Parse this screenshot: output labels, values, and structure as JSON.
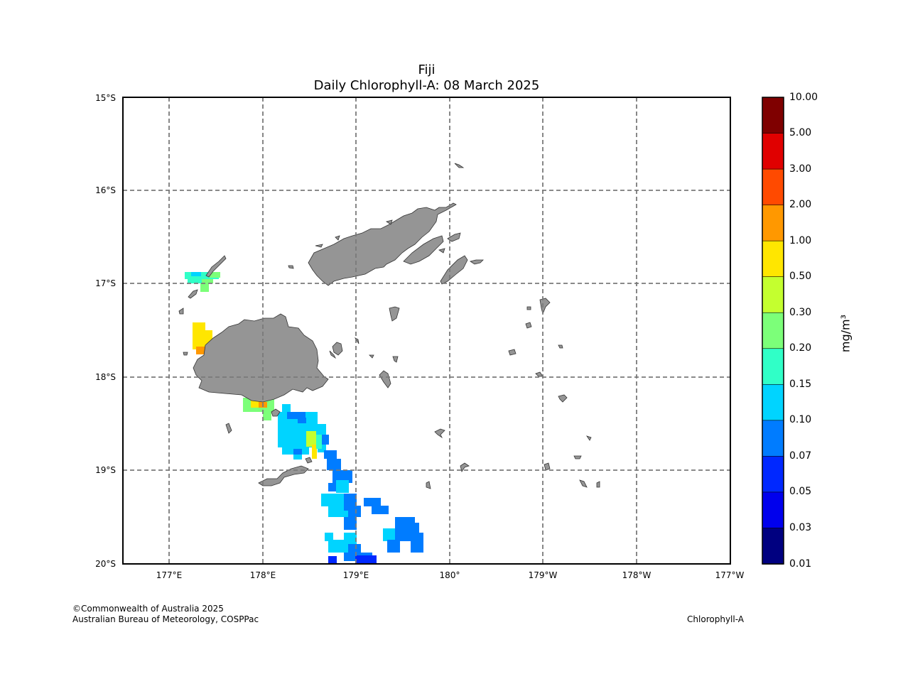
{
  "title": {
    "region": "Fiji",
    "subtitle": "Daily Chlorophyll-A: 08 March 2025"
  },
  "map": {
    "lat_labels": [
      "15°S",
      "16°S",
      "17°S",
      "18°S",
      "19°S",
      "20°S"
    ],
    "lon_labels": [
      "177°E",
      "178°E",
      "179°E",
      "180°",
      "179°W",
      "178°W",
      "177°W"
    ],
    "land_color": "#959595",
    "grid_style": "dashed"
  },
  "colorbar": {
    "labels": [
      "10.00",
      "5.00",
      "3.00",
      "2.00",
      "1.00",
      "0.50",
      "0.30",
      "0.20",
      "0.15",
      "0.10",
      "0.07",
      "0.05",
      "0.03",
      "0.01"
    ],
    "colors": [
      "#7f0000",
      "#e00000",
      "#ff4a00",
      "#ff9800",
      "#ffe600",
      "#c4ff2f",
      "#7cff79",
      "#30ffc7",
      "#00d4ff",
      "#007cff",
      "#0028ff",
      "#0000ed",
      "#000080"
    ],
    "unit": "mg/m³"
  },
  "footer": {
    "copyright": "©Commonwealth of Australia 2025",
    "agency": "Australian Bureau of Meteorology, COSPPac",
    "product": "Chlorophyll-A"
  }
}
